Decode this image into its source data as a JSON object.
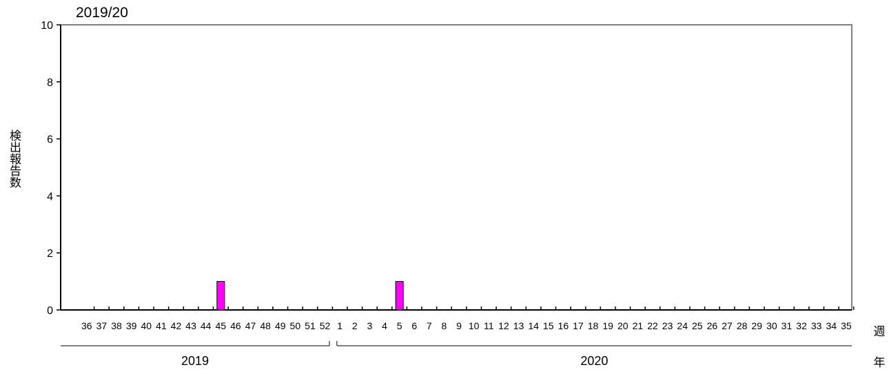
{
  "chart_data": {
    "type": "bar",
    "title": "2019/20",
    "ylabel": "検出報告数",
    "xlabel": "週",
    "year_axis_label": "年",
    "ylim": [
      0,
      10
    ],
    "yticks": [
      "0",
      "2",
      "4",
      "6",
      "8",
      "10"
    ],
    "grid": false,
    "categories": [
      "36",
      "37",
      "38",
      "39",
      "40",
      "41",
      "42",
      "43",
      "44",
      "45",
      "46",
      "47",
      "48",
      "49",
      "50",
      "51",
      "52",
      "1",
      "2",
      "3",
      "4",
      "5",
      "6",
      "7",
      "8",
      "9",
      "10",
      "11",
      "12",
      "13",
      "14",
      "15",
      "16",
      "17",
      "18",
      "19",
      "20",
      "21",
      "22",
      "23",
      "24",
      "25",
      "26",
      "27",
      "28",
      "29",
      "30",
      "31",
      "32",
      "33",
      "34",
      "35"
    ],
    "values": [
      0,
      0,
      0,
      0,
      0,
      0,
      0,
      0,
      0,
      1,
      0,
      0,
      0,
      0,
      0,
      0,
      0,
      0,
      0,
      0,
      0,
      1,
      0,
      0,
      0,
      0,
      0,
      0,
      0,
      0,
      0,
      0,
      0,
      0,
      0,
      0,
      0,
      0,
      0,
      0,
      0,
      0,
      0,
      0,
      0,
      0,
      0,
      0,
      0,
      0,
      0,
      0
    ],
    "year_groups": [
      {
        "label": "2019",
        "start": "36",
        "end": "52"
      },
      {
        "label": "2020",
        "start": "1",
        "end": "35"
      }
    ],
    "bar_color": "#ff00ff"
  }
}
